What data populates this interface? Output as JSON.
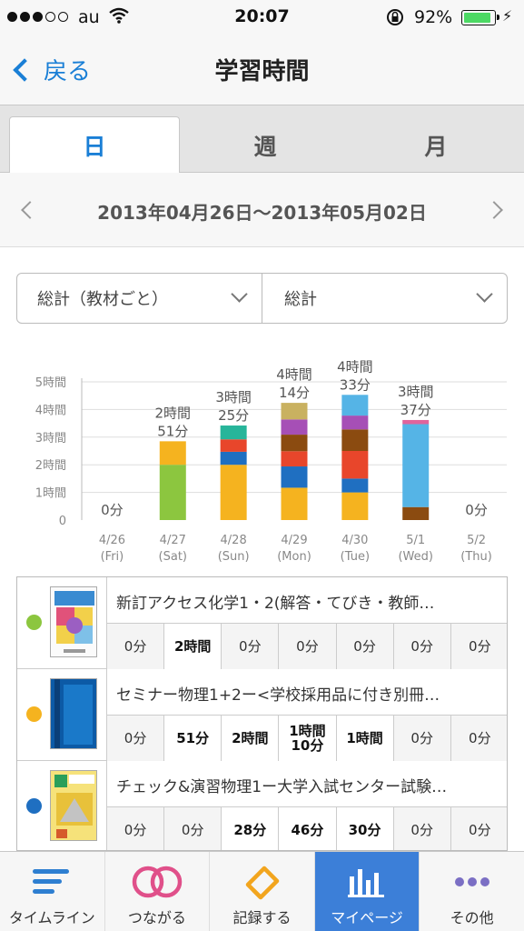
{
  "status_bar": {
    "carrier": "au",
    "time": "20:07",
    "battery_text": "92%",
    "battery_level": 0.92
  },
  "nav": {
    "back_label": "戻る",
    "title": "学習時間"
  },
  "tabs": [
    {
      "label": "日",
      "active": true
    },
    {
      "label": "週",
      "active": false
    },
    {
      "label": "月",
      "active": false
    }
  ],
  "date_range": "2013年04月26日〜2013年05月02日",
  "selectors": {
    "left": "総計（教材ごと）",
    "right": "総計"
  },
  "colors": {
    "accent": "#1a7fd6",
    "tab_active": "#3c7fd8",
    "green": "#8cc63f",
    "yellow": "#f5b31f",
    "blue": "#1f6fc1",
    "red": "#e8462b",
    "brown": "#8b4b10",
    "purple": "#a64fb6",
    "olive": "#c9b160",
    "teal": "#27b59a",
    "sky": "#55b4e6",
    "pink": "#e0649c"
  },
  "chart_data": {
    "type": "bar",
    "stacked": true,
    "categories": [
      "4/26",
      "4/27",
      "4/28",
      "4/29",
      "4/30",
      "5/1",
      "5/2"
    ],
    "category_sublabels": [
      "(Fri)",
      "(Sat)",
      "(Sun)",
      "(Mon)",
      "(Tue)",
      "(Wed)",
      "(Thu)"
    ],
    "y_ticks": [
      "0",
      "1時間",
      "2時間",
      "3時間",
      "4時間",
      "5時間"
    ],
    "ylim": [
      0,
      5
    ],
    "grid": true,
    "total_labels": [
      "0分",
      "2時間\n51分",
      "3時間\n25分",
      "4時間\n14分",
      "4時間\n33分",
      "3時間\n37分",
      "0分"
    ],
    "series": [
      {
        "color": "#8cc63f",
        "values": [
          0,
          2.0,
          0,
          0,
          0,
          0,
          0
        ]
      },
      {
        "color": "#f5b31f",
        "values": [
          0,
          0.85,
          2.0,
          1.17,
          1.0,
          0,
          0
        ]
      },
      {
        "color": "#1f6fc1",
        "values": [
          0,
          0,
          0.47,
          0.77,
          0.5,
          0,
          0
        ]
      },
      {
        "color": "#e8462b",
        "values": [
          0,
          0,
          0.45,
          0.55,
          1.0,
          0,
          0
        ]
      },
      {
        "color": "#8b4b10",
        "values": [
          0,
          0,
          0,
          0.6,
          0.78,
          0.47,
          0
        ]
      },
      {
        "color": "#a64fb6",
        "values": [
          0,
          0,
          0,
          0.55,
          0.5,
          0,
          0
        ]
      },
      {
        "color": "#c9b160",
        "values": [
          0,
          0,
          0,
          0.6,
          0,
          0,
          0
        ]
      },
      {
        "color": "#27b59a",
        "values": [
          0,
          0,
          0.5,
          0,
          0,
          0,
          0
        ]
      },
      {
        "color": "#55b4e6",
        "values": [
          0,
          0,
          0,
          0,
          0.75,
          3.0,
          0
        ]
      },
      {
        "color": "#e0649c",
        "values": [
          0,
          0,
          0,
          0,
          0,
          0.15,
          0
        ]
      }
    ]
  },
  "books": [
    {
      "dot_color": "#8cc63f",
      "name": "新訂アクセス化学1・2(解答・てびき・教師…",
      "cover": "accessa",
      "cells": [
        "0分",
        "2時間",
        "0分",
        "0分",
        "0分",
        "0分",
        "0分"
      ]
    },
    {
      "dot_color": "#f5b31f",
      "name": "セミナー物理1+2ー<学校採用品に付き別冊…",
      "cover": "blue-book",
      "cells": [
        "0分",
        "51分",
        "2時間",
        "1時間\n10分",
        "1時間",
        "0分",
        "0分"
      ]
    },
    {
      "dot_color": "#1f6fc1",
      "name": "チェック&演習物理1ー大学入試センター試験…",
      "cover": "yellow-book",
      "cells": [
        "0分",
        "0分",
        "28分",
        "46分",
        "30分",
        "0分",
        "0分"
      ]
    }
  ],
  "tab_bar": [
    {
      "label": "タイムライン",
      "icon": "timeline-icon",
      "active": false
    },
    {
      "label": "つながる",
      "icon": "connect-rings-icon",
      "active": false
    },
    {
      "label": "記録する",
      "icon": "record-pencil-icon",
      "active": false
    },
    {
      "label": "マイページ",
      "icon": "mypage-chart-icon",
      "active": true
    },
    {
      "label": "その他",
      "icon": "more-dots-icon",
      "active": false
    }
  ]
}
